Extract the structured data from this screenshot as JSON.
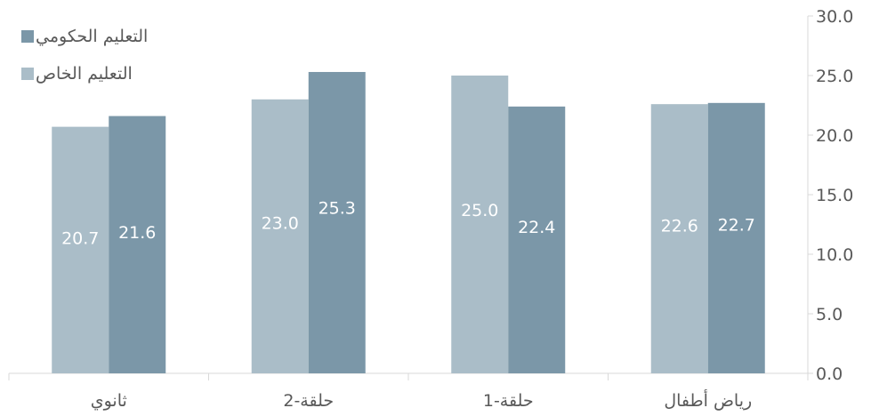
{
  "chart_data": {
    "type": "bar",
    "categories": [
      "ثانوي",
      "حلقة-2",
      "حلقة-1",
      "رياض أطفال"
    ],
    "series": [
      {
        "name": "التعليم الخاص",
        "values": [
          20.7,
          23.0,
          25.0,
          22.6
        ],
        "color": "#aabdc8"
      },
      {
        "name": "التعليم الحكومي",
        "values": [
          21.6,
          25.3,
          22.4,
          22.7
        ],
        "color": "#7b97a8"
      }
    ],
    "ylim": [
      0,
      30
    ],
    "yticks": [
      "0.0",
      "5.0",
      "10.0",
      "15.0",
      "20.0",
      "25.0",
      "30.0"
    ],
    "y_axis_side": "right",
    "legend_position": "top-left",
    "legend_order": [
      "التعليم الحكومي",
      "التعليم الخاص"
    ],
    "data_labels": true,
    "grid": false
  }
}
